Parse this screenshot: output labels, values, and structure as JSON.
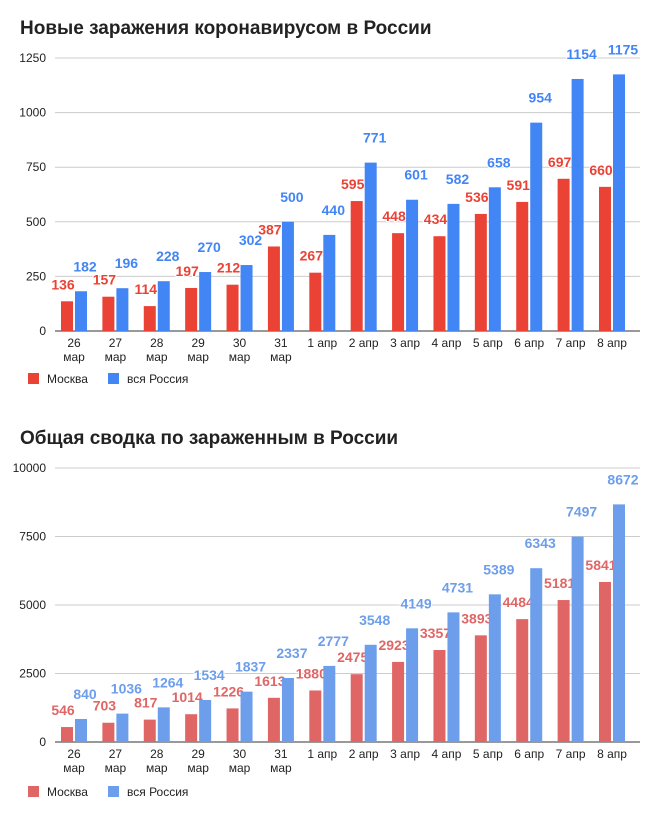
{
  "chart_data": [
    {
      "type": "bar",
      "title": "Новые заражения коронавирусом в России",
      "categories": [
        "26 мар",
        "27 мар",
        "28 мар",
        "29 мар",
        "30 мар",
        "31 мар",
        "1 апр",
        "2 апр",
        "3 апр",
        "4 апр",
        "5 апр",
        "6 апр",
        "7 апр",
        "8 апр"
      ],
      "series": [
        {
          "name": "Москва",
          "color": "#ea4335",
          "values": [
            136,
            157,
            114,
            197,
            212,
            387,
            267,
            595,
            448,
            434,
            536,
            591,
            697,
            660
          ]
        },
        {
          "name": "вся Россия",
          "color": "#4285f4",
          "values": [
            182,
            196,
            228,
            270,
            302,
            500,
            440,
            771,
            601,
            582,
            658,
            954,
            1154,
            1175
          ]
        }
      ],
      "yticks": [
        0,
        250,
        500,
        750,
        1000,
        1250
      ],
      "ylim": [
        0,
        1250
      ],
      "grid": true,
      "legend": "bottom-left"
    },
    {
      "type": "bar",
      "title": "Общая сводка по зараженным в России",
      "categories": [
        "26 мар",
        "27 мар",
        "28 мар",
        "29 мар",
        "30 мар",
        "31 мар",
        "1 апр",
        "2 апр",
        "3 апр",
        "4 апр",
        "5 апр",
        "6 апр",
        "7 апр",
        "8 апр"
      ],
      "series": [
        {
          "name": "Москва",
          "color": "#e06666",
          "values": [
            546,
            703,
            817,
            1014,
            1226,
            1613,
            1880,
            2475,
            2923,
            3357,
            3893,
            4484,
            5181,
            5841
          ]
        },
        {
          "name": "вся Россия",
          "color": "#6d9eeb",
          "values": [
            840,
            1036,
            1264,
            1534,
            1837,
            2337,
            2777,
            3548,
            4149,
            4731,
            5389,
            6343,
            7497,
            8672
          ]
        }
      ],
      "yticks": [
        0,
        2500,
        5000,
        7500,
        10000
      ],
      "ylim": [
        0,
        10000
      ],
      "grid": true,
      "legend": "bottom-left"
    }
  ]
}
